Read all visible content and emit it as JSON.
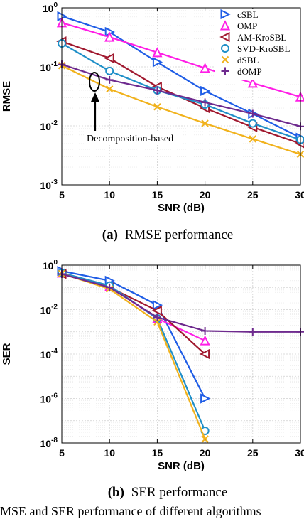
{
  "series_styles": [
    {
      "name": "cSBL",
      "color": "#1f5de6",
      "marker": "triangle-right"
    },
    {
      "name": "OMP",
      "color": "#ff1ee6",
      "marker": "triangle-up"
    },
    {
      "name": "AM-KroSBL",
      "color": "#a0182e",
      "marker": "triangle-left"
    },
    {
      "name": "SVD-KroSBL",
      "color": "#1f8fc8",
      "marker": "circle"
    },
    {
      "name": "dSBL",
      "color": "#f1b21c",
      "marker": "x"
    },
    {
      "name": "dOMP",
      "color": "#6e2a8e",
      "marker": "plus"
    }
  ],
  "chart_data": [
    {
      "type": "line",
      "xlabel": "SNR (dB)",
      "ylabel": "RMSE",
      "y_scale": "log",
      "xlim": [
        5,
        30
      ],
      "ylim": [
        0.001,
        1
      ],
      "x_ticks": [
        "5",
        "10",
        "15",
        "20",
        "25",
        "30"
      ],
      "y_ticks": [
        {
          "exp": "0"
        },
        {
          "exp": "-1"
        },
        {
          "exp": "-2"
        },
        {
          "exp": "-3"
        }
      ],
      "grid": "on",
      "legend_position": "top-right",
      "x": [
        5,
        10,
        15,
        20,
        25,
        30
      ],
      "series": [
        {
          "name": "cSBL",
          "values": [
            0.72,
            0.39,
            0.12,
            0.039,
            0.016,
            0.0063
          ]
        },
        {
          "name": "OMP",
          "values": [
            0.56,
            0.32,
            0.175,
            0.095,
            0.053,
            0.031
          ]
        },
        {
          "name": "AM-KroSBL",
          "values": [
            0.27,
            0.14,
            0.046,
            0.02,
            0.0095,
            0.005
          ]
        },
        {
          "name": "SVD-KroSBL",
          "values": [
            0.25,
            0.085,
            0.04,
            0.023,
            0.011,
            0.0058
          ]
        },
        {
          "name": "dSBL",
          "values": [
            0.105,
            0.042,
            0.021,
            0.011,
            0.006,
            0.0033
          ]
        },
        {
          "name": "dOMP",
          "values": [
            0.11,
            0.06,
            0.04,
            0.025,
            0.016,
            0.0098
          ]
        }
      ],
      "annotation": "Decomposition-based",
      "caption_label": "(a)",
      "caption_text": "RMSE performance"
    },
    {
      "type": "line",
      "xlabel": "SNR (dB)",
      "ylabel": "SER",
      "y_scale": "log",
      "xlim": [
        5,
        30
      ],
      "ylim": [
        1e-08,
        1
      ],
      "x_ticks": [
        "5",
        "10",
        "15",
        "20",
        "25",
        "30"
      ],
      "y_ticks": [
        {
          "exp": "0"
        },
        {
          "exp": "-2"
        },
        {
          "exp": "-4"
        },
        {
          "exp": "-6"
        },
        {
          "exp": "-8"
        }
      ],
      "grid": "on",
      "x": [
        5,
        10,
        15,
        20,
        25,
        30
      ],
      "series": [
        {
          "name": "cSBL",
          "x": [
            5,
            10,
            15,
            20
          ],
          "values": [
            0.55,
            0.2,
            0.016,
            1e-06
          ]
        },
        {
          "name": "OMP",
          "x": [
            5,
            10,
            15,
            20
          ],
          "values": [
            0.45,
            0.11,
            0.004,
            0.0004
          ]
        },
        {
          "name": "AM-KroSBL",
          "x": [
            5,
            10,
            15,
            20
          ],
          "values": [
            0.4,
            0.1,
            0.009,
            0.0001
          ]
        },
        {
          "name": "SVD-KroSBL",
          "x": [
            5,
            10,
            15,
            20
          ],
          "values": [
            0.45,
            0.12,
            0.004,
            3.5e-08
          ]
        },
        {
          "name": "dSBL",
          "x": [
            5,
            10,
            15,
            20
          ],
          "values": [
            0.42,
            0.085,
            0.0028,
            1.5e-08
          ]
        },
        {
          "name": "dOMP",
          "x": [
            5,
            10,
            15,
            20,
            25,
            30
          ],
          "values": [
            0.4,
            0.1,
            0.0045,
            0.0011,
            0.001,
            0.001
          ]
        }
      ],
      "caption_label": "(b)",
      "caption_text": "SER performance"
    }
  ],
  "bottom_caption": "MSE and SER performance of different algorithms"
}
